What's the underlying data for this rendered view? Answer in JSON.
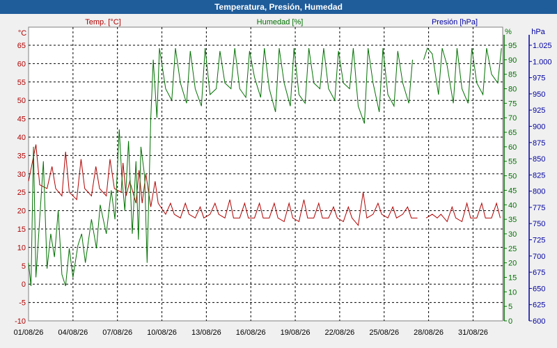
{
  "window": {
    "title": "Temperatura, Presión, Humedad"
  },
  "colors": {
    "temp": "#b00000",
    "hum": "#007000",
    "pres": "#0000a0",
    "title_bar": "#1f5c9a",
    "grid": "#000000"
  },
  "chart_data": {
    "type": "line",
    "title": "Temperatura, Presión, Humedad",
    "grid": true,
    "x": {
      "start": "01/08/26",
      "end": "02/09/26",
      "tick_labels": [
        "01/08/26",
        "04/08/26",
        "07/08/26",
        "10/08/26",
        "13/08/26",
        "16/08/26",
        "19/08/26",
        "22/08/26",
        "25/08/26",
        "28/08/26",
        "31/08/26"
      ]
    },
    "axes": {
      "temp": {
        "label": "Temp. [°C]",
        "unit_label": "°C",
        "range": [
          -10,
          65
        ],
        "ticks": [
          "-10",
          "-5",
          "0",
          "5",
          "10",
          "15",
          "20",
          "25",
          "30",
          "35",
          "40",
          "45",
          "50",
          "55",
          "60",
          "65"
        ]
      },
      "hum": {
        "label": "Humedad [%]",
        "unit_label": "%",
        "range": [
          0,
          95
        ],
        "ticks": [
          "0",
          "5",
          "10",
          "15",
          "20",
          "25",
          "30",
          "35",
          "40",
          "45",
          "50",
          "55",
          "60",
          "65",
          "70",
          "75",
          "80",
          "85",
          "90",
          "95"
        ]
      },
      "pres": {
        "label": "Presión [hPa]",
        "unit_label": "hPa",
        "range": [
          600,
          1025
        ],
        "ticks": [
          "600",
          "625",
          "650",
          "675",
          "700",
          "725",
          "750",
          "775",
          "800",
          "825",
          "850",
          "875",
          "900",
          "925",
          "950",
          "975",
          "1.000",
          "1.025"
        ]
      }
    },
    "series": [
      {
        "name": "Temp. [°C]",
        "axis": "temp",
        "x": [
          "01/08/26 00:00",
          "01/08/26 12:00",
          "01/08/26 18:00",
          "02/08/26 06:00",
          "02/08/26 14:00",
          "02/08/26 20:00",
          "03/08/26 06:00",
          "03/08/26 12:00",
          "03/08/26 18:00",
          "04/08/26 06:00",
          "04/08/26 13:00",
          "04/08/26 19:00",
          "05/08/26 06:00",
          "05/08/26 13:00",
          "05/08/26 19:00",
          "06/08/26 06:00",
          "06/08/26 12:00",
          "06/08/26 19:00",
          "07/08/26 06:00",
          "07/08/26 09:00",
          "07/08/26 14:00",
          "07/08/26 20:00",
          "08/08/26 06:00",
          "08/08/26 11:00",
          "08/08/26 16:00",
          "08/08/26 22:00",
          "09/08/26 06:00",
          "09/08/26 13:00",
          "09/08/26 18:00",
          "10/08/26 06:00",
          "10/08/26 14:00",
          "10/08/26 20:00",
          "11/08/26 06:00",
          "11/08/26 14:00",
          "11/08/26 20:00",
          "12/08/26 06:00",
          "12/08/26 14:00",
          "12/08/26 20:00",
          "13/08/26 06:00",
          "13/08/26 14:00",
          "13/08/26 20:00",
          "14/08/26 06:00",
          "14/08/26 14:00",
          "14/08/26 20:00",
          "15/08/26 06:00",
          "15/08/26 14:00",
          "15/08/26 20:00",
          "16/08/26 06:00",
          "16/08/26 14:00",
          "16/08/26 20:00",
          "17/08/26 06:00",
          "17/08/26 14:00",
          "17/08/26 20:00",
          "18/08/26 06:00",
          "18/08/26 14:00",
          "18/08/26 20:00",
          "19/08/26 06:00",
          "19/08/26 14:00",
          "19/08/26 20:00",
          "20/08/26 06:00",
          "20/08/26 14:00",
          "20/08/26 20:00",
          "21/08/26 06:00",
          "21/08/26 14:00",
          "21/08/26 20:00",
          "22/08/26 06:00",
          "22/08/26 14:00",
          "22/08/26 20:00",
          "23/08/26 06:00",
          "23/08/26 14:00",
          "23/08/26 20:00",
          "24/08/26 06:00",
          "24/08/26 14:00",
          "24/08/26 20:00",
          "25/08/26 06:00",
          "25/08/26 14:00",
          "25/08/26 20:00",
          "26/08/26 06:00",
          "26/08/26 14:00",
          "26/08/26 20:00",
          "27/08/26 06:00",
          null,
          "27/08/26 20:00",
          "28/08/26 06:00",
          "28/08/26 14:00",
          "28/08/26 20:00",
          "29/08/26 06:00",
          "29/08/26 14:00",
          "29/08/26 20:00",
          "30/08/26 06:00",
          "30/08/26 14:00",
          "30/08/26 20:00",
          "31/08/26 06:00",
          "31/08/26 14:00",
          "31/08/26 20:00",
          "01/09/26 06:00",
          "01/09/26 14:00",
          "01/09/26 20:00"
        ],
        "values": [
          28,
          38,
          27,
          26,
          32,
          26,
          24,
          36,
          25,
          23,
          34,
          26,
          24,
          32,
          26,
          24,
          34,
          26,
          25,
          33,
          24,
          28,
          22,
          31,
          22,
          30,
          21,
          28,
          22,
          19,
          22,
          19,
          18,
          22,
          19,
          18,
          21,
          18,
          19,
          22,
          19,
          18,
          23,
          18,
          18,
          22,
          18,
          18,
          22,
          18,
          18,
          22,
          18,
          17,
          22,
          18,
          17,
          23,
          18,
          18,
          22,
          18,
          18,
          21,
          18,
          17,
          21,
          18,
          16,
          25,
          18,
          19,
          22,
          19,
          18,
          21,
          18,
          19,
          21,
          18,
          18,
          null,
          18,
          19,
          18,
          19,
          17,
          21,
          18,
          17,
          22,
          18,
          18,
          22,
          18,
          18,
          22,
          18
        ]
      },
      {
        "name": "Humedad [%]",
        "axis": "hum",
        "x": [
          "01/08/26 00:00",
          "01/08/26 04:00",
          "01/08/26 08:00",
          "01/08/26 12:00",
          "01/08/26 18:00",
          "02/08/26 00:00",
          "02/08/26 06:00",
          "02/08/26 12:00",
          "02/08/26 18:00",
          "03/08/26 00:00",
          "03/08/26 06:00",
          "03/08/26 12:00",
          "03/08/26 18:00",
          "04/08/26 00:00",
          "04/08/26 08:00",
          "04/08/26 14:00",
          "04/08/26 20:00",
          "05/08/26 06:00",
          "05/08/26 14:00",
          "05/08/26 20:00",
          "06/08/26 06:00",
          "06/08/26 14:00",
          "06/08/26 20:00",
          "07/08/26 03:00",
          "07/08/26 07:00",
          "07/08/26 12:00",
          "07/08/26 18:00",
          "08/08/26 00:00",
          "08/08/26 06:00",
          "08/08/26 10:00",
          "08/08/26 14:00",
          "08/08/26 20:00",
          "09/08/26 00:00",
          "09/08/26 06:00",
          "09/08/26 10:00",
          "09/08/26 16:00",
          "09/08/26 20:00",
          "10/08/26 06:00",
          "10/08/26 16:00",
          "10/08/26 22:00",
          "11/08/26 06:00",
          "11/08/26 16:00",
          "11/08/26 22:00",
          "12/08/26 06:00",
          "12/08/26 16:00",
          "12/08/26 22:00",
          "13/08/26 06:00",
          "13/08/26 16:00",
          "13/08/26 22:00",
          "14/08/26 06:00",
          "14/08/26 16:00",
          "14/08/26 22:00",
          "15/08/26 06:00",
          "15/08/26 16:00",
          "15/08/26 22:00",
          "16/08/26 06:00",
          "16/08/26 16:00",
          "16/08/26 22:00",
          "17/08/26 06:00",
          "17/08/26 16:00",
          "17/08/26 22:00",
          "18/08/26 06:00",
          "18/08/26 16:00",
          "18/08/26 22:00",
          "19/08/26 06:00",
          "19/08/26 16:00",
          "19/08/26 22:00",
          "20/08/26 06:00",
          "20/08/26 16:00",
          "20/08/26 22:00",
          "21/08/26 06:00",
          "21/08/26 16:00",
          "21/08/26 22:00",
          "22/08/26 06:00",
          "22/08/26 16:00",
          "22/08/26 22:00",
          "23/08/26 06:00",
          "23/08/26 16:00",
          "23/08/26 22:00",
          "24/08/26 06:00",
          "24/08/26 16:00",
          "24/08/26 22:00",
          "25/08/26 06:00",
          "25/08/26 16:00",
          "25/08/26 22:00",
          "26/08/26 06:00",
          "26/08/26 16:00",
          "26/08/26 22:00",
          null,
          "27/08/26 16:00",
          "27/08/26 22:00",
          "28/08/26 06:00",
          "28/08/26 16:00",
          "28/08/26 22:00",
          "29/08/26 06:00",
          "29/08/26 16:00",
          "29/08/26 22:00",
          "30/08/26 06:00",
          "30/08/26 16:00",
          "30/08/26 22:00",
          "31/08/26 06:00",
          "31/08/26 16:00",
          "31/08/26 22:00",
          "01/09/26 06:00",
          "01/09/26 16:00",
          "01/09/26 22:00"
        ],
        "values": [
          20,
          12,
          60,
          15,
          35,
          55,
          18,
          30,
          22,
          38,
          16,
          12,
          25,
          15,
          26,
          30,
          20,
          35,
          25,
          40,
          30,
          45,
          35,
          66,
          50,
          38,
          62,
          30,
          55,
          28,
          60,
          50,
          20,
          70,
          90,
          70,
          94,
          80,
          76,
          94,
          82,
          75,
          93,
          80,
          74,
          94,
          78,
          80,
          93,
          82,
          80,
          94,
          80,
          77,
          93,
          84,
          77,
          94,
          80,
          72,
          94,
          82,
          74,
          94,
          78,
          75,
          94,
          82,
          80,
          94,
          80,
          76,
          93,
          82,
          80,
          94,
          74,
          68,
          94,
          82,
          72,
          94,
          78,
          74,
          93,
          82,
          75,
          90,
          null,
          90,
          94,
          92,
          78,
          94,
          88,
          75,
          94,
          80,
          75,
          94,
          82,
          78,
          94,
          85,
          82,
          94
        ]
      }
    ]
  }
}
